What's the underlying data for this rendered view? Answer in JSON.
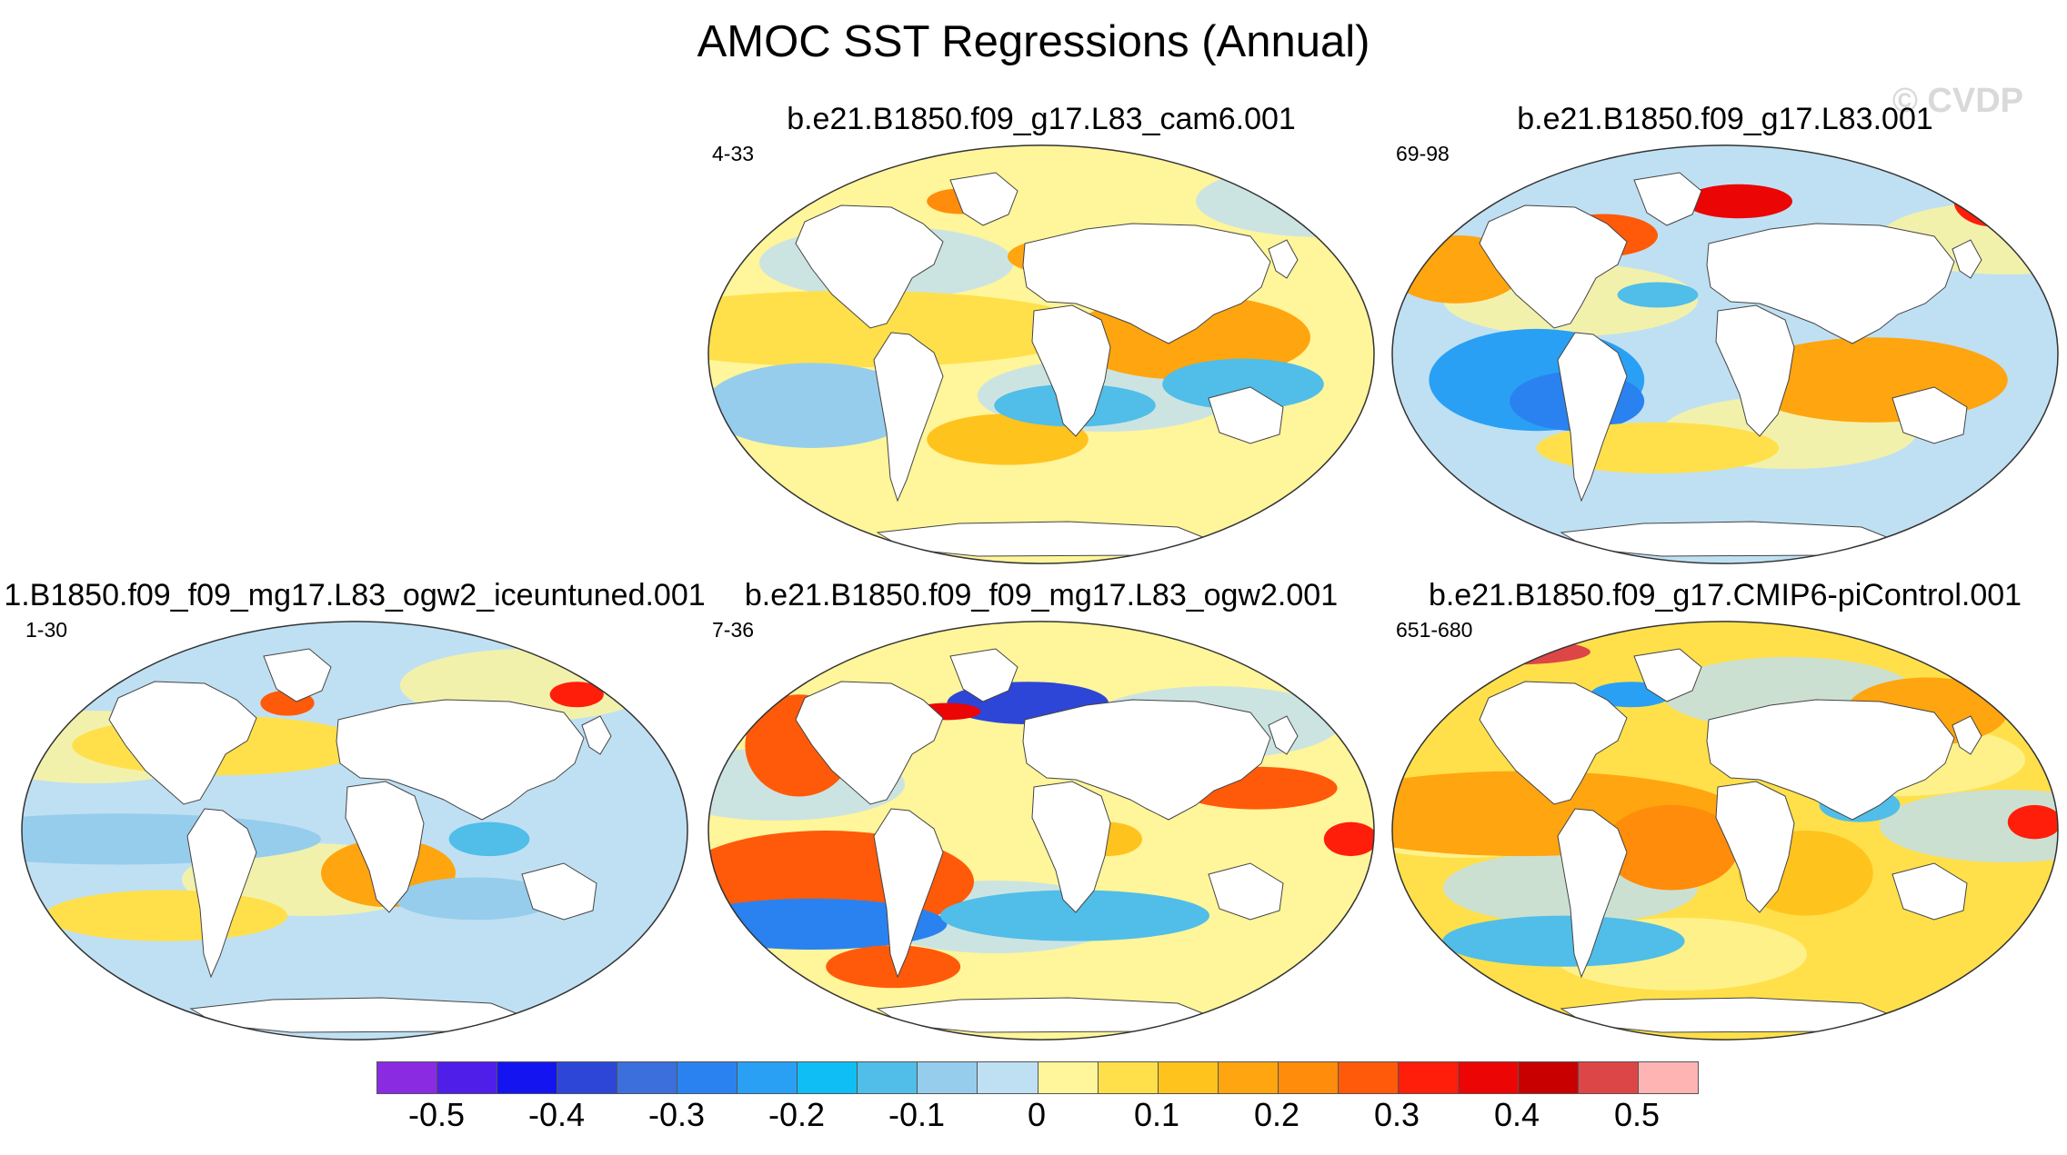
{
  "title": "AMOC SST Regressions (Annual)",
  "watermark": "© CVDP",
  "panels": [
    {
      "id": "a",
      "title": "b.e21.B1850.f09_g17.L83_cam6.001",
      "range": "4-33"
    },
    {
      "id": "b",
      "title": "b.e21.B1850.f09_g17.L83.001",
      "range": "69-98"
    },
    {
      "id": "c",
      "title": "1.B1850.f09_f09_mg17.L83_ogw2_iceuntuned.001",
      "range": "1-30"
    },
    {
      "id": "d",
      "title": "b.e21.B1850.f09_f09_mg17.L83_ogw2.001",
      "range": "7-36"
    },
    {
      "id": "e",
      "title": "b.e21.B1850.f09_g17.CMIP6-piControl.001",
      "range": "651-680"
    }
  ],
  "colorbar": {
    "colors": [
      "#8a2be2",
      "#4f1ee8",
      "#1414f0",
      "#2d46d8",
      "#3c6edc",
      "#2a82f0",
      "#2aa0f5",
      "#0fbef5",
      "#50bee8",
      "#96cdec",
      "#bfe0f3",
      "#fff59a",
      "#ffe04a",
      "#ffc31e",
      "#ffa50f",
      "#ff8c0a",
      "#ff5a0a",
      "#ff1e0a",
      "#eb0505",
      "#c80000",
      "#dc4646",
      "#ffb4b4"
    ],
    "labels": [
      {
        "text": "-0.5",
        "value": -0.5
      },
      {
        "text": "-0.4",
        "value": -0.4
      },
      {
        "text": "-0.3",
        "value": -0.3
      },
      {
        "text": "-0.2",
        "value": -0.2
      },
      {
        "text": "-0.1",
        "value": -0.1
      },
      {
        "text": "0",
        "value": 0
      },
      {
        "text": "0.1",
        "value": 0.1
      },
      {
        "text": "0.2",
        "value": 0.2
      },
      {
        "text": "0.3",
        "value": 0.3
      },
      {
        "text": "0.4",
        "value": 0.4
      },
      {
        "text": "0.5",
        "value": 0.5
      }
    ],
    "min": -0.55,
    "max": 0.55
  }
}
